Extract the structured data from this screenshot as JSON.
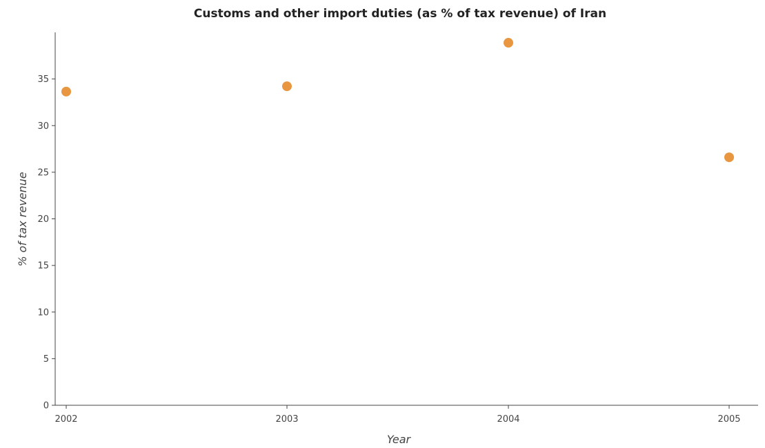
{
  "chart_data": {
    "type": "scatter",
    "title": "Customs and other import duties (as % of tax revenue) of Iran",
    "xlabel": "Year",
    "ylabel": "% of tax revenue",
    "categories": [
      "2002",
      "2003",
      "2004",
      "2005"
    ],
    "values": [
      33.65,
      34.22,
      38.89,
      26.6
    ],
    "ylim": [
      0,
      40
    ],
    "yticks": [
      0,
      5,
      10,
      15,
      20,
      25,
      30,
      35
    ],
    "grid": false,
    "marker_color": "#e8963f"
  }
}
